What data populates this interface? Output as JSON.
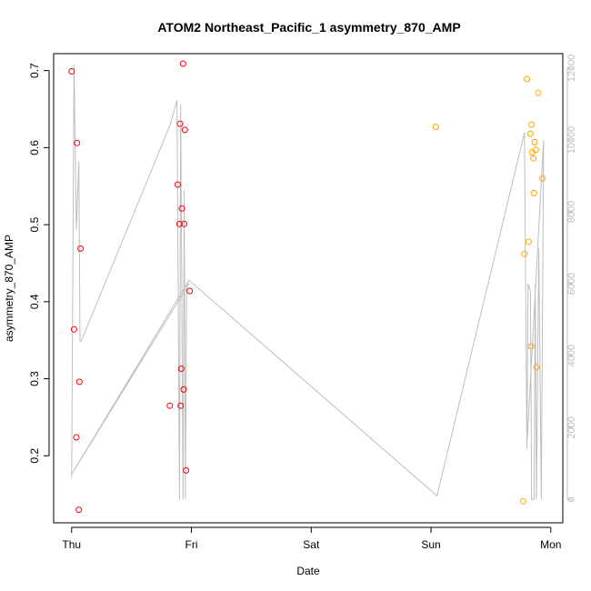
{
  "chart_data": {
    "type": "scatter",
    "title": "ATOM2 Northeast_Pacific_1 asymmetry_870_AMP",
    "xlabel": "Date",
    "ylabel": "asymmetry_870_AMP",
    "x_ticks": [
      "Thu",
      "Fri",
      "Sat",
      "Sun",
      "Mon"
    ],
    "xlim": [
      -0.15,
      4.1
    ],
    "ylim": [
      0.113,
      0.722
    ],
    "y_ticks": [
      0.2,
      0.3,
      0.4,
      0.5,
      0.6,
      0.7
    ],
    "y2_ticks": [
      0,
      2000,
      4000,
      6000,
      8000,
      10000,
      12000
    ],
    "y2lim": [
      -650,
      12400
    ],
    "grid": false,
    "colors": {
      "red": "#ff0000",
      "orange": "#ffa500",
      "line": "#bebebe",
      "axis": "#000000",
      "axis2": "#bdbdbd"
    },
    "series": [
      {
        "color": "red",
        "points": [
          [
            0.0,
            0.699
          ],
          [
            0.02,
            0.364
          ],
          [
            0.04,
            0.224
          ],
          [
            0.045,
            0.606
          ],
          [
            0.06,
            0.13
          ],
          [
            0.065,
            0.296
          ],
          [
            0.075,
            0.469
          ],
          [
            0.82,
            0.265
          ],
          [
            0.885,
            0.552
          ],
          [
            0.9,
            0.501
          ],
          [
            0.905,
            0.631
          ],
          [
            0.91,
            0.265
          ],
          [
            0.915,
            0.313
          ],
          [
            0.92,
            0.521
          ],
          [
            0.93,
            0.709
          ],
          [
            0.935,
            0.286
          ],
          [
            0.94,
            0.501
          ],
          [
            0.945,
            0.623
          ],
          [
            0.955,
            0.181
          ],
          [
            0.985,
            0.414
          ]
        ]
      },
      {
        "color": "orange",
        "points": [
          [
            3.04,
            0.627
          ],
          [
            3.77,
            0.141
          ],
          [
            3.78,
            0.462
          ],
          [
            3.8,
            0.689
          ],
          [
            3.815,
            0.478
          ],
          [
            3.83,
            0.618
          ],
          [
            3.835,
            0.342
          ],
          [
            3.84,
            0.63
          ],
          [
            3.845,
            0.594
          ],
          [
            3.855,
            0.586
          ],
          [
            3.86,
            0.541
          ],
          [
            3.865,
            0.607
          ],
          [
            3.875,
            0.597
          ],
          [
            3.88,
            0.315
          ],
          [
            3.895,
            0.671
          ],
          [
            3.93,
            0.56
          ]
        ]
      }
    ],
    "line_series": {
      "axis": "secondary",
      "points": [
        [
          0.0,
          600
        ],
        [
          0.02,
          12100
        ],
        [
          0.04,
          7500
        ],
        [
          0.06,
          9400
        ],
        [
          0.07,
          4400
        ],
        [
          0.08,
          4400
        ],
        [
          0.82,
          10400
        ],
        [
          0.88,
          11100
        ],
        [
          0.9,
          0
        ],
        [
          0.91,
          11000
        ],
        [
          0.93,
          0
        ],
        [
          0.94,
          8600
        ],
        [
          0.95,
          0
        ],
        [
          0.96,
          6000
        ],
        [
          0.98,
          6000
        ],
        [
          0.0,
          700
        ],
        [
          0.98,
          6100
        ],
        [
          3.05,
          100
        ],
        [
          3.78,
          10200
        ],
        [
          3.8,
          1400
        ],
        [
          3.81,
          6000
        ],
        [
          3.83,
          5800
        ],
        [
          3.84,
          0
        ],
        [
          3.86,
          0
        ],
        [
          3.87,
          6000
        ],
        [
          3.88,
          0
        ],
        [
          3.9,
          7000
        ],
        [
          3.92,
          0
        ],
        [
          3.94,
          10000
        ],
        [
          3.8,
          1500
        ]
      ]
    }
  }
}
